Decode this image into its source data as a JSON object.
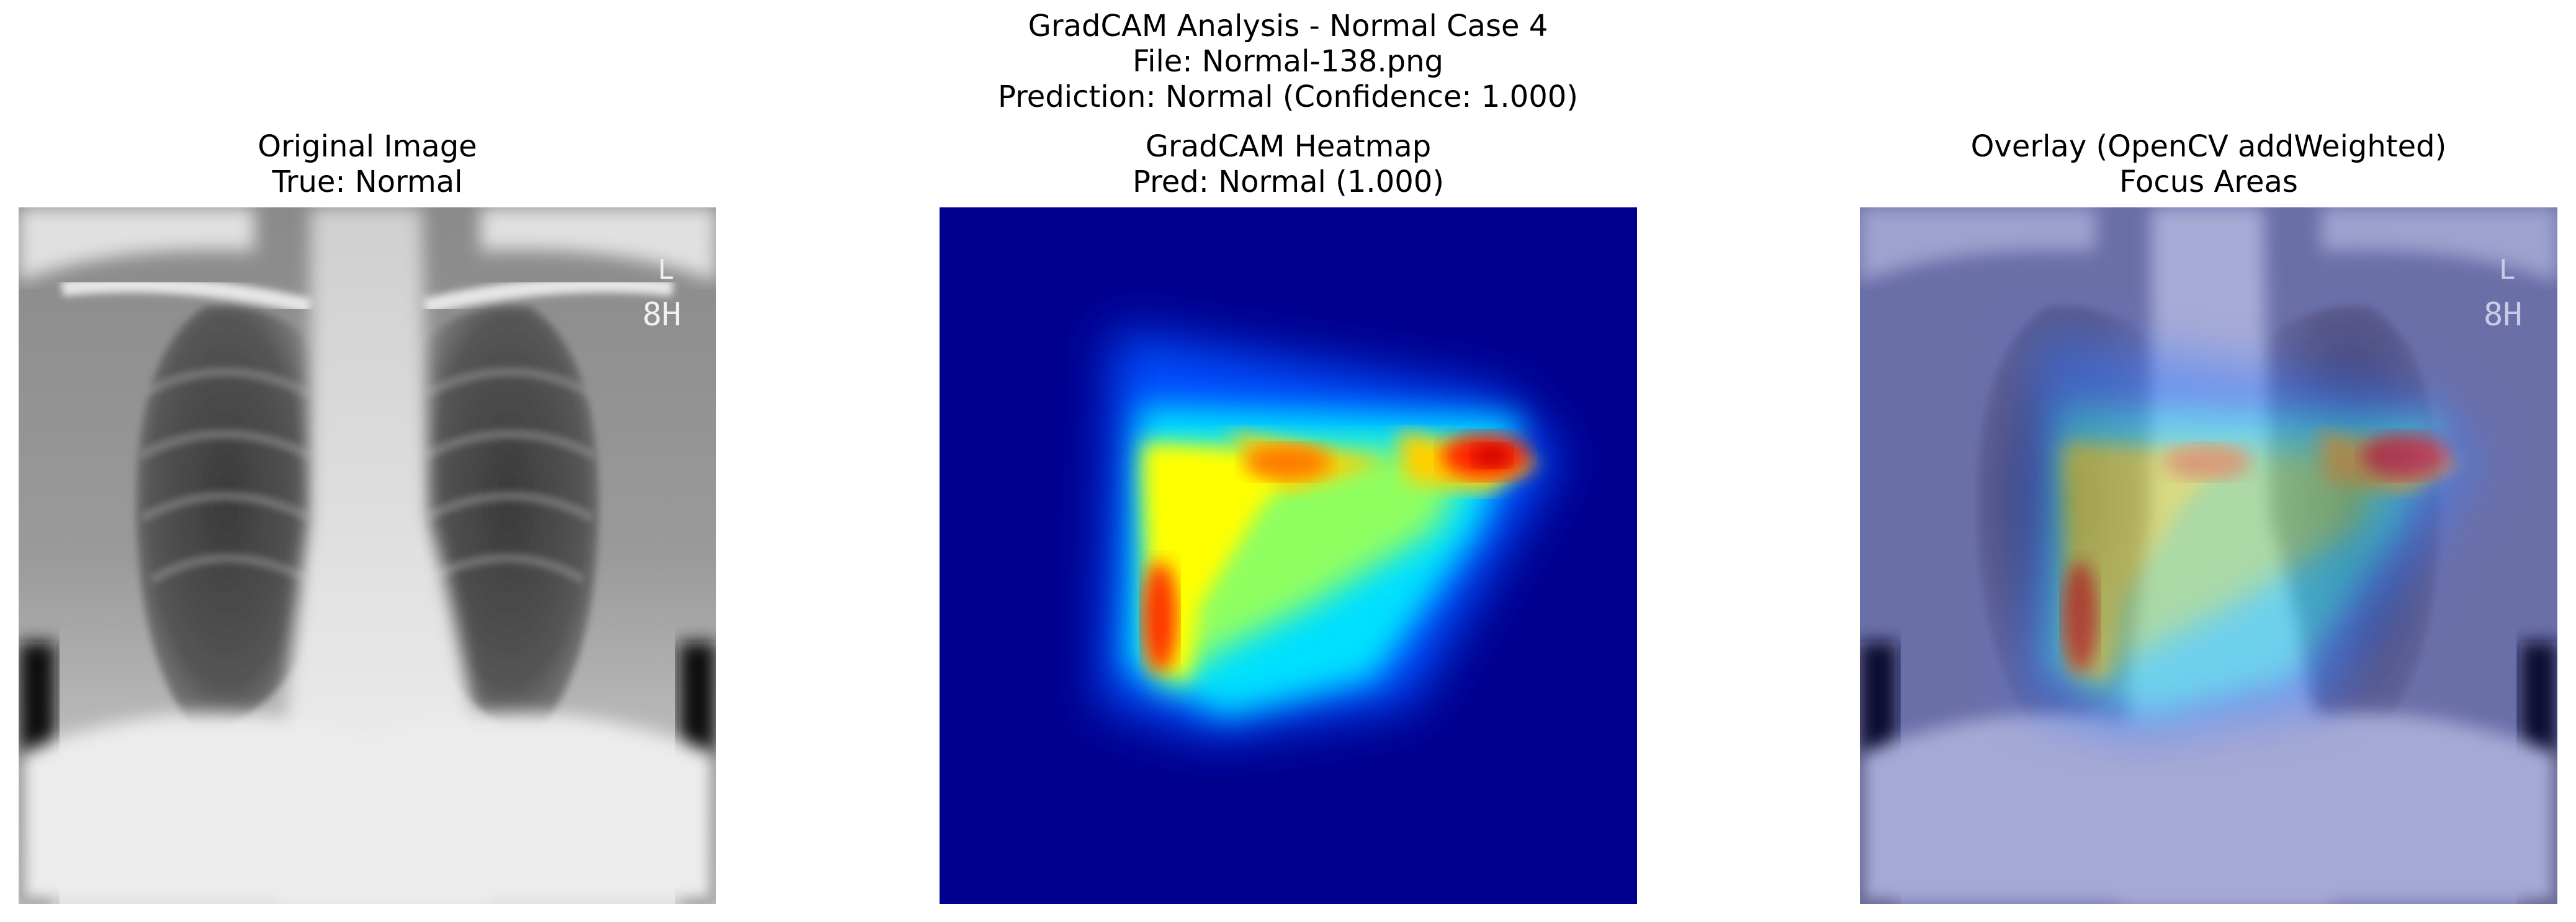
{
  "figure": {
    "suptitle_lines": [
      "GradCAM Analysis - Normal Case 4",
      "File: Normal-138.png",
      "Prediction: Normal (Confidence: 1.000)"
    ]
  },
  "panels": [
    {
      "title_lines": [
        "Original Image",
        "True: Normal"
      ],
      "image": "chest-xray-grayscale"
    },
    {
      "title_lines": [
        "GradCAM Heatmap",
        "Pred: Normal (1.000)"
      ],
      "image": "gradcam-heatmap-jet"
    },
    {
      "title_lines": [
        "Overlay (OpenCV addWeighted)",
        "Focus Areas"
      ],
      "image": "xray-heatmap-overlay"
    }
  ],
  "colors": {
    "jet_background": "#00008f",
    "hot": "#ff0000",
    "warm": "#ffff00",
    "cool": "#00ffff"
  }
}
